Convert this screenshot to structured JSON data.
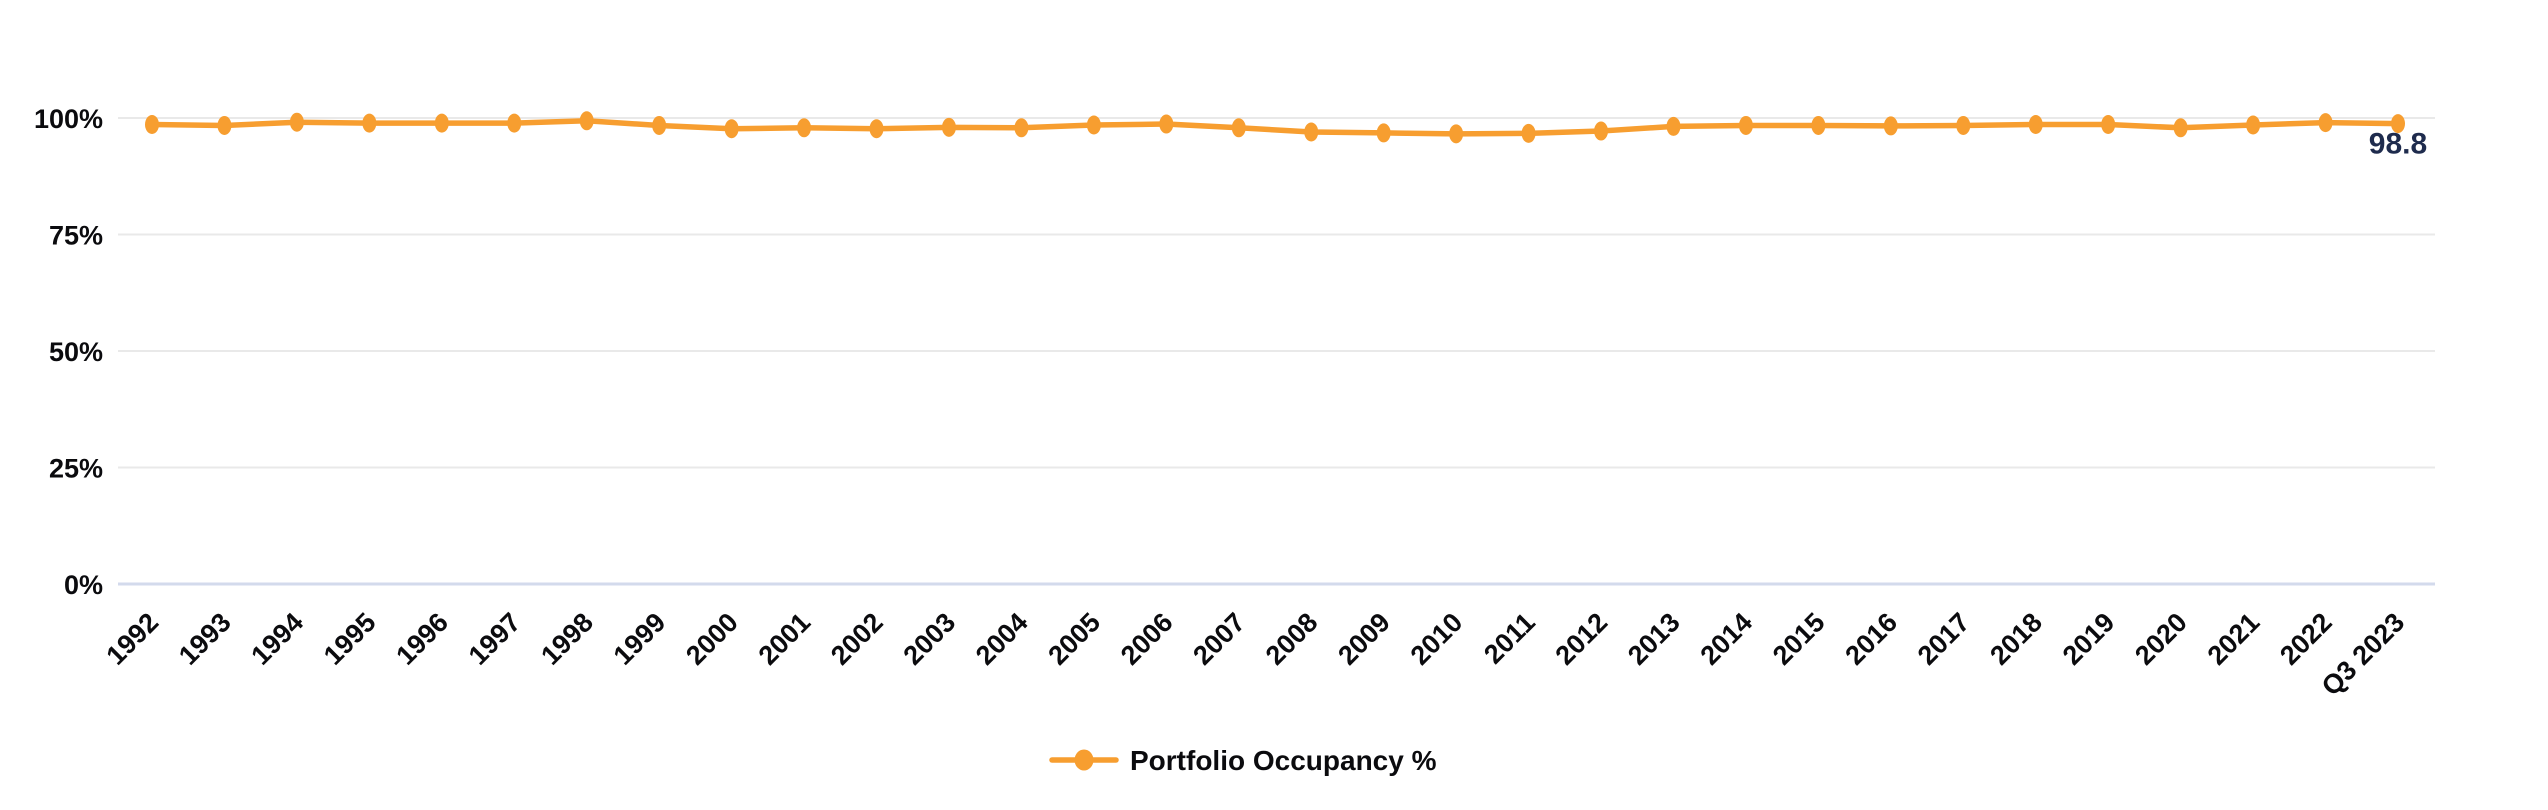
{
  "chart_data": {
    "type": "line",
    "title": "",
    "xlabel": "",
    "ylabel": "",
    "ylim": [
      0,
      100
    ],
    "grid": "horizontal",
    "legend_position": "bottom-center",
    "yticks": [
      {
        "value": 0,
        "label": "0%"
      },
      {
        "value": 25,
        "label": "25%"
      },
      {
        "value": 50,
        "label": "50%"
      },
      {
        "value": 75,
        "label": "75%"
      },
      {
        "value": 100,
        "label": "100%"
      }
    ],
    "categories": [
      "1992",
      "1993",
      "1994",
      "1995",
      "1996",
      "1997",
      "1998",
      "1999",
      "2000",
      "2001",
      "2002",
      "2003",
      "2004",
      "2005",
      "2006",
      "2007",
      "2008",
      "2009",
      "2010",
      "2011",
      "2012",
      "2013",
      "2014",
      "2015",
      "2016",
      "2017",
      "2018",
      "2019",
      "2020",
      "2021",
      "2022",
      "Q3 2023"
    ],
    "series": [
      {
        "name": "Portfolio Occupancy %",
        "color": "#F79E30",
        "values": [
          98.6,
          98.4,
          99.1,
          98.9,
          98.9,
          98.9,
          99.4,
          98.4,
          97.7,
          97.9,
          97.7,
          98.0,
          97.9,
          98.5,
          98.7,
          97.9,
          97.0,
          96.8,
          96.6,
          96.7,
          97.2,
          98.2,
          98.4,
          98.4,
          98.3,
          98.4,
          98.6,
          98.6,
          97.9,
          98.5,
          99.0,
          98.8
        ]
      }
    ],
    "last_point_label": "98.8"
  },
  "colors": {
    "series_orange": "#F79E30",
    "gridline": "#E9E9E9",
    "zero_axis_line": "#D3DAEC",
    "tick_label": "#0B0B0E",
    "annotation_label": "#1E2B4D",
    "background": "#FFFFFF"
  }
}
